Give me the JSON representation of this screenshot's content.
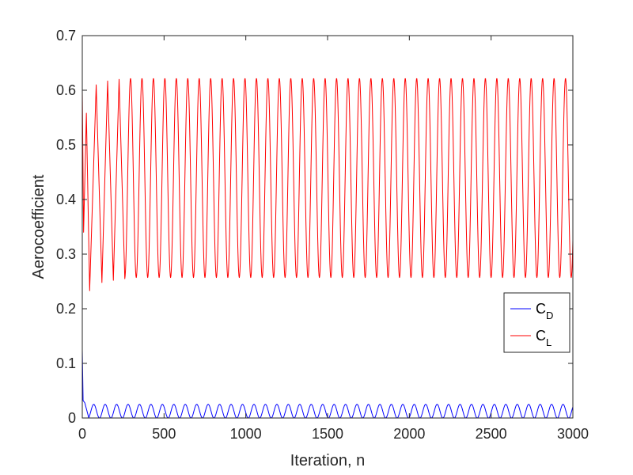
{
  "chart_data": {
    "type": "line",
    "title": "",
    "xlabel": "Iteration, n",
    "ylabel": "Aerocoefficient",
    "xlim": [
      0,
      3000
    ],
    "ylim": [
      0,
      0.7
    ],
    "xticks": [
      0,
      500,
      1000,
      1500,
      2000,
      2500,
      3000
    ],
    "xtick_labels": [
      "0",
      "500",
      "1000",
      "1500",
      "2000",
      "2500",
      "3000"
    ],
    "yticks": [
      0,
      0.1,
      0.2,
      0.3,
      0.4,
      0.5,
      0.6,
      0.7
    ],
    "ytick_labels": [
      "0",
      "0.1",
      "0.2",
      "0.3",
      "0.4",
      "0.5",
      "0.6",
      "0.7"
    ],
    "grid": false,
    "legend": {
      "placement": "right",
      "entries": [
        {
          "main": "C",
          "sub": "D",
          "color": "#0000ff"
        },
        {
          "main": "C",
          "sub": "L",
          "color": "#ff0000"
        }
      ]
    },
    "series": [
      {
        "label": "C_D",
        "color": "#0000ff",
        "initial": [
          [
            0,
            0.125
          ],
          [
            5,
            0.032
          ],
          [
            15,
            0.028
          ],
          [
            40,
            0.0
          ]
        ],
        "oscillation": {
          "start": 40,
          "end": 3000,
          "min": 0.0,
          "max": 0.025,
          "period": 70,
          "first_peak": 70
        }
      },
      {
        "label": "C_L",
        "color": "#ff0000",
        "initial": [
          [
            0,
            0.6
          ],
          [
            8,
            0.34
          ],
          [
            25,
            0.558
          ],
          [
            45,
            0.233
          ],
          [
            85,
            0.61
          ],
          [
            120,
            0.248
          ],
          [
            155,
            0.617
          ],
          [
            190,
            0.252
          ],
          [
            225,
            0.62
          ],
          [
            260,
            0.255
          ]
        ],
        "oscillation": {
          "start": 260,
          "end": 3000,
          "min": 0.257,
          "max": 0.622,
          "period": 70,
          "first_peak": 295
        }
      }
    ]
  }
}
